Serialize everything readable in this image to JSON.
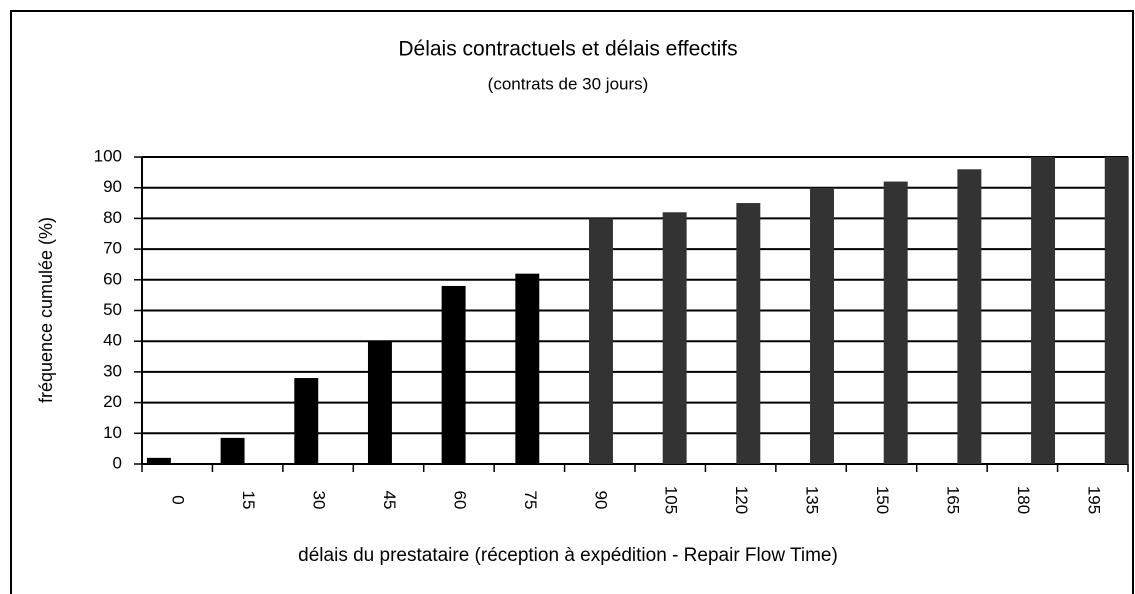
{
  "chart_data": {
    "type": "bar",
    "title": "Délais contractuels et délais effectifs",
    "subtitle": "(contrats de 30 jours)",
    "x_label": "délais du prestataire (réception à expédition - Repair Flow Time)",
    "y_label": "fréquence cumulée (%)",
    "categories": [
      "0",
      "15",
      "30",
      "45",
      "60",
      "75",
      "90",
      "105",
      "120",
      "135",
      "150",
      "165",
      "180",
      "195"
    ],
    "values": [
      2,
      8.5,
      28,
      40,
      58,
      62,
      80,
      82,
      85,
      90,
      92,
      96,
      100,
      100
    ],
    "colors": [
      "#000000",
      "#000000",
      "#000000",
      "#000000",
      "#000000",
      "#000000",
      "#333333",
      "#333333",
      "#333333",
      "#333333",
      "#333333",
      "#333333",
      "#333333",
      "#333333"
    ],
    "ylim": [
      0,
      100
    ],
    "yticks": [
      0,
      10,
      20,
      30,
      40,
      50,
      60,
      70,
      80,
      90,
      100
    ],
    "grid": true
  }
}
